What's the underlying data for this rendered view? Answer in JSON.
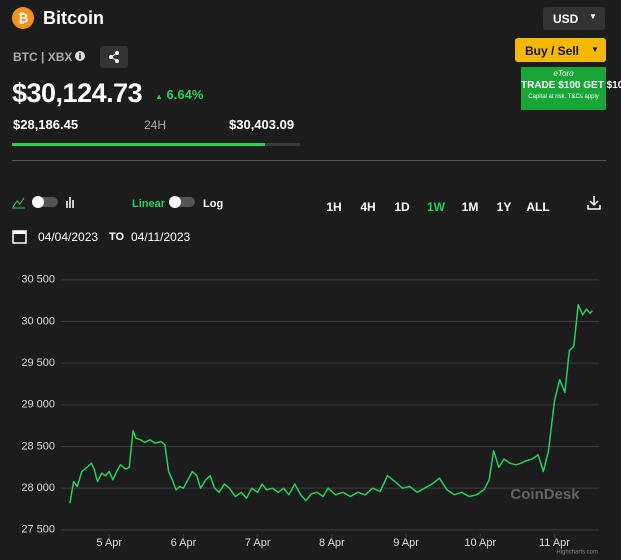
{
  "header": {
    "title": "Bitcoin",
    "pair": "BTC | XBX",
    "price": "$30,124.73",
    "change": "6.64%",
    "low": "$28,186.45",
    "range_label": "24H",
    "high": "$30,403.09"
  },
  "controls": {
    "currency": "USD",
    "buy": "Buy / Sell",
    "ad_brand": "eToro",
    "ad_text": "TRADE $100 GET $10",
    "ad_note": "Capital at risk. T&Cs apply",
    "linear": "Linear",
    "log": "Log",
    "ranges": [
      "1H",
      "4H",
      "1D",
      "1W",
      "1M",
      "1Y",
      "ALL"
    ],
    "active_range": "1W",
    "date_from": "04/04/2023",
    "date_sep": "TO",
    "date_to": "04/11/2023"
  },
  "chart_data": {
    "type": "line",
    "watermark": "CoinDesk",
    "credit": "Highcharts.com",
    "color": "#22d15a",
    "grid": true,
    "xlim": [
      4.35,
      11.6
    ],
    "ylim": [
      27450,
      30750
    ],
    "xticks": [
      {
        "value": 5,
        "label": "5 Apr"
      },
      {
        "value": 6,
        "label": "6 Apr"
      },
      {
        "value": 7,
        "label": "7 Apr"
      },
      {
        "value": 8,
        "label": "8 Apr"
      },
      {
        "value": 9,
        "label": "9 Apr"
      },
      {
        "value": 10,
        "label": "10 Apr"
      },
      {
        "value": 11,
        "label": "11 Apr"
      }
    ],
    "yticks": [
      {
        "value": 27500,
        "label": "27 500"
      },
      {
        "value": 28000,
        "label": "28 000"
      },
      {
        "value": 28500,
        "label": "28 500"
      },
      {
        "value": 29000,
        "label": "29 000"
      },
      {
        "value": 29500,
        "label": "29 500"
      },
      {
        "value": 30000,
        "label": "30 000"
      },
      {
        "value": 30500,
        "label": "30 500"
      }
    ],
    "x": [
      4.47,
      4.52,
      4.57,
      4.63,
      4.7,
      4.76,
      4.8,
      4.84,
      4.9,
      4.95,
      5.0,
      5.05,
      5.1,
      5.15,
      5.22,
      5.27,
      5.32,
      5.36,
      5.42,
      5.48,
      5.55,
      5.62,
      5.7,
      5.75,
      5.8,
      5.85,
      5.9,
      5.95,
      6.0,
      6.06,
      6.12,
      6.18,
      6.23,
      6.3,
      6.36,
      6.42,
      6.48,
      6.55,
      6.62,
      6.7,
      6.78,
      6.85,
      6.92,
      7.0,
      7.06,
      7.12,
      7.2,
      7.28,
      7.35,
      7.42,
      7.5,
      7.58,
      7.65,
      7.72,
      7.8,
      7.88,
      7.95,
      8.05,
      8.15,
      8.25,
      8.35,
      8.45,
      8.55,
      8.65,
      8.75,
      8.85,
      8.95,
      9.05,
      9.15,
      9.25,
      9.35,
      9.45,
      9.55,
      9.65,
      9.75,
      9.85,
      9.95,
      10.05,
      10.12,
      10.18,
      10.25,
      10.32,
      10.4,
      10.48,
      10.55,
      10.62,
      10.7,
      10.78,
      10.85,
      10.92,
      11.0,
      11.07,
      11.14,
      11.2,
      11.26,
      11.32,
      11.38,
      11.43,
      11.48,
      11.51
    ],
    "values": [
      27820,
      28080,
      28020,
      28200,
      28250,
      28300,
      28220,
      28080,
      28180,
      28150,
      28200,
      28100,
      28200,
      28280,
      28230,
      28250,
      28690,
      28600,
      28580,
      28550,
      28580,
      28540,
      28560,
      28520,
      28200,
      28100,
      27980,
      28020,
      28000,
      28100,
      28200,
      28150,
      28000,
      28100,
      28150,
      28000,
      27950,
      28050,
      28000,
      27900,
      27950,
      27880,
      28000,
      27950,
      28050,
      27980,
      28000,
      27950,
      28000,
      27920,
      28050,
      27920,
      27850,
      27930,
      27950,
      27900,
      28000,
      27920,
      27950,
      27900,
      27950,
      27920,
      28000,
      27960,
      28150,
      28080,
      28000,
      28020,
      27950,
      28000,
      28050,
      28120,
      27980,
      27920,
      27950,
      27900,
      27920,
      27980,
      28100,
      28450,
      28250,
      28350,
      28300,
      28280,
      28300,
      28330,
      28350,
      28400,
      28200,
      28450,
      29050,
      29300,
      29150,
      29650,
      29700,
      30200,
      30080,
      30150,
      30100,
      30130
    ]
  }
}
